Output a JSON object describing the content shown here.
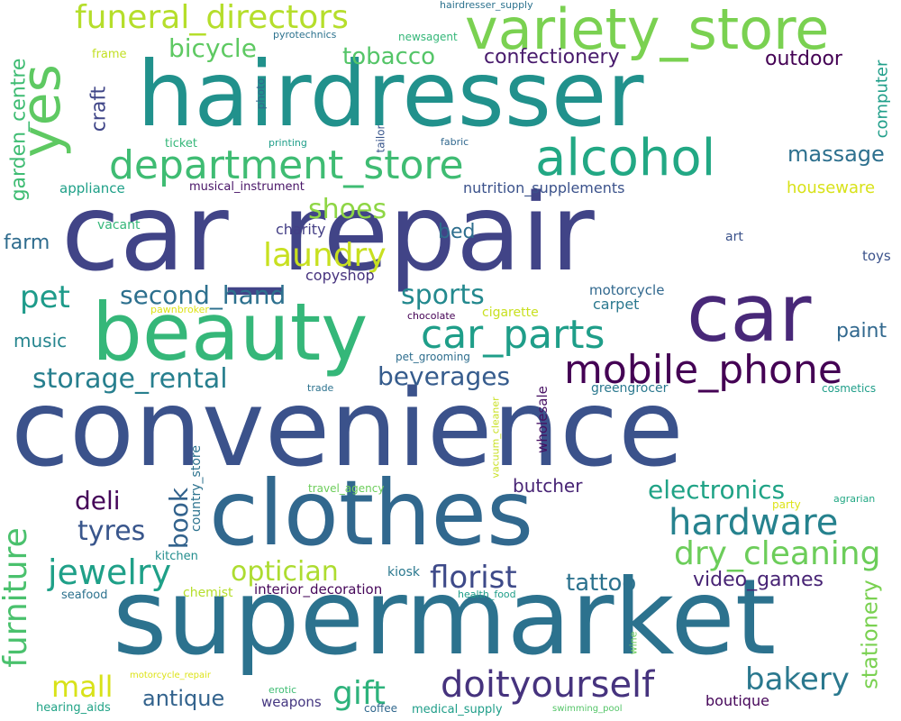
{
  "words": [
    {
      "text": "car_repair",
      "color": "#414487",
      "vertical": false
    },
    {
      "text": "convenience",
      "color": "#3b528b",
      "vertical": false
    },
    {
      "text": "supermarket",
      "color": "#2c728e",
      "vertical": false
    },
    {
      "text": "hairdresser",
      "color": "#21918c",
      "vertical": false
    },
    {
      "text": "clothes",
      "color": "#31688e",
      "vertical": false
    },
    {
      "text": "beauty",
      "color": "#35b779",
      "vertical": false
    },
    {
      "text": "car",
      "color": "#482878",
      "vertical": false
    },
    {
      "text": "yes",
      "color": "#5ec962",
      "vertical": true
    },
    {
      "text": "variety_store",
      "color": "#7ad151",
      "vertical": false
    },
    {
      "text": "alcohol",
      "color": "#22a884",
      "vertical": false
    },
    {
      "text": "department_store",
      "color": "#3fbc73",
      "vertical": false
    },
    {
      "text": "funeral_directors",
      "color": "#b5de2b",
      "vertical": false
    },
    {
      "text": "mobile_phone",
      "color": "#440154",
      "vertical": false
    },
    {
      "text": "car_parts",
      "color": "#1f9e89",
      "vertical": false
    },
    {
      "text": "hardware",
      "color": "#26828e",
      "vertical": false
    },
    {
      "text": "doityourself",
      "color": "#46337e",
      "vertical": false
    },
    {
      "text": "dry_cleaning",
      "color": "#6ccd5a",
      "vertical": false
    },
    {
      "text": "jewelry",
      "color": "#1fa088",
      "vertical": false
    },
    {
      "text": "furniture",
      "color": "#4ac16d",
      "vertical": true
    },
    {
      "text": "florist",
      "color": "#3e4a89",
      "vertical": false
    },
    {
      "text": "bakery",
      "color": "#2a788e",
      "vertical": false
    },
    {
      "text": "storage_rental",
      "color": "#277f8e",
      "vertical": false
    },
    {
      "text": "laundry",
      "color": "#c8e020",
      "vertical": false
    },
    {
      "text": "sports",
      "color": "#23898e",
      "vertical": false
    },
    {
      "text": "optician",
      "color": "#addc30",
      "vertical": false
    },
    {
      "text": "gift",
      "color": "#2eb37c",
      "vertical": false
    },
    {
      "text": "mall",
      "color": "#d8e219",
      "vertical": false
    },
    {
      "text": "second_hand",
      "color": "#2d708e",
      "vertical": false
    },
    {
      "text": "electronics",
      "color": "#20a386",
      "vertical": false
    },
    {
      "text": "beverages",
      "color": "#365c8d",
      "vertical": false
    },
    {
      "text": "shoes",
      "color": "#8ed645",
      "vertical": false
    },
    {
      "text": "pet",
      "color": "#1e9b8a",
      "vertical": false
    },
    {
      "text": "bicycle",
      "color": "#5ec962",
      "vertical": false
    },
    {
      "text": "tobacco",
      "color": "#54c568",
      "vertical": false
    },
    {
      "text": "tyres",
      "color": "#39568c",
      "vertical": false
    },
    {
      "text": "book",
      "color": "#33638d",
      "vertical": true
    },
    {
      "text": "deli",
      "color": "#450559",
      "vertical": false
    },
    {
      "text": "tattoo",
      "color": "#2c728e",
      "vertical": false
    },
    {
      "text": "antique",
      "color": "#33638d",
      "vertical": false
    },
    {
      "text": "stationery",
      "color": "#7ad151",
      "vertical": true
    },
    {
      "text": "massage",
      "color": "#2d708e",
      "vertical": false
    },
    {
      "text": "video_games",
      "color": "#482475",
      "vertical": false
    },
    {
      "text": "confectionery",
      "color": "#481a6c",
      "vertical": false
    },
    {
      "text": "outdoor",
      "color": "#440154",
      "vertical": false
    },
    {
      "text": "craft",
      "color": "#404688",
      "vertical": true
    },
    {
      "text": "garden_centre",
      "color": "#3fbc73",
      "vertical": true
    },
    {
      "text": "butcher",
      "color": "#482475",
      "vertical": false
    },
    {
      "text": "paint",
      "color": "#31688e",
      "vertical": false
    },
    {
      "text": "bed",
      "color": "#2e6e8e",
      "vertical": false
    },
    {
      "text": "music",
      "color": "#25858e",
      "vertical": false
    },
    {
      "text": "farm",
      "color": "#2f6c8e",
      "vertical": false
    },
    {
      "text": "computer",
      "color": "#1f9e89",
      "vertical": true
    },
    {
      "text": "houseware",
      "color": "#d8e219",
      "vertical": false
    },
    {
      "text": "nutrition_supplements",
      "color": "#3b528b",
      "vertical": false
    },
    {
      "text": "boutique",
      "color": "#46075a",
      "vertical": false
    },
    {
      "text": "charity",
      "color": "#433e85",
      "vertical": false
    },
    {
      "text": "copyshop",
      "color": "#46327e",
      "vertical": false
    },
    {
      "text": "motorcycle",
      "color": "#31688e",
      "vertical": false
    },
    {
      "text": "carpet",
      "color": "#2a788e",
      "vertical": false
    },
    {
      "text": "appliance",
      "color": "#1fa088",
      "vertical": false
    },
    {
      "text": "musical_instrument",
      "color": "#481467",
      "vertical": false
    },
    {
      "text": "interior_decoration",
      "color": "#46075a",
      "vertical": false
    },
    {
      "text": "weapons",
      "color": "#453781",
      "vertical": false
    },
    {
      "text": "kiosk",
      "color": "#2a788e",
      "vertical": false
    },
    {
      "text": "toys",
      "color": "#3b528b",
      "vertical": false
    },
    {
      "text": "cigarette",
      "color": "#c8e020",
      "vertical": false
    },
    {
      "text": "greengrocer",
      "color": "#2a788e",
      "vertical": false
    },
    {
      "text": "wholesale",
      "color": "#471063",
      "vertical": true
    },
    {
      "text": "country_store",
      "color": "#2c728e",
      "vertical": true
    },
    {
      "text": "travel_agency",
      "color": "#6ccd5a",
      "vertical": false
    },
    {
      "text": "chemist",
      "color": "#b5de2b",
      "vertical": false
    },
    {
      "text": "kitchen",
      "color": "#228d8d",
      "vertical": false
    },
    {
      "text": "seafood",
      "color": "#2c728e",
      "vertical": false
    },
    {
      "text": "hearing_aids",
      "color": "#20a386",
      "vertical": false
    },
    {
      "text": "coffee",
      "color": "#31688e",
      "vertical": false
    },
    {
      "text": "medical_supply",
      "color": "#1f9e89",
      "vertical": false
    },
    {
      "text": "trade",
      "color": "#2c728e",
      "vertical": false
    },
    {
      "text": "cosmetics",
      "color": "#1f9e89",
      "vertical": false
    },
    {
      "text": "vacuum_cleaner",
      "color": "#c8e020",
      "vertical": true
    },
    {
      "text": "pet_grooming",
      "color": "#2e6e8e",
      "vertical": false
    },
    {
      "text": "chocolate",
      "color": "#440154",
      "vertical": false
    },
    {
      "text": "pawnbroker",
      "color": "#dde318",
      "vertical": false
    },
    {
      "text": "vacant",
      "color": "#35b779",
      "vertical": false
    },
    {
      "text": "art",
      "color": "#3b528b",
      "vertical": false
    },
    {
      "text": "ticket",
      "color": "#35b779",
      "vertical": false
    },
    {
      "text": "printing",
      "color": "#1f9e89",
      "vertical": false
    },
    {
      "text": "fabric",
      "color": "#31688e",
      "vertical": false
    },
    {
      "text": "tailor",
      "color": "#39568c",
      "vertical": true
    },
    {
      "text": "photo",
      "color": "#31688e",
      "vertical": true
    },
    {
      "text": "frame",
      "color": "#c2df23",
      "vertical": false
    },
    {
      "text": "pyrotechnics",
      "color": "#2c728e",
      "vertical": false
    },
    {
      "text": "newsagent",
      "color": "#35b779",
      "vertical": false
    },
    {
      "text": "hairdresser_supply",
      "color": "#2c728e",
      "vertical": false
    },
    {
      "text": "party",
      "color": "#dde318",
      "vertical": false
    },
    {
      "text": "agrarian",
      "color": "#22a884",
      "vertical": false
    },
    {
      "text": "health_food",
      "color": "#1f9e89",
      "vertical": false
    },
    {
      "text": "wine",
      "color": "#6ccd5a",
      "vertical": true
    },
    {
      "text": "motorcycle_repair",
      "color": "#dde318",
      "vertical": false
    },
    {
      "text": "erotic",
      "color": "#3fbc73",
      "vertical": false
    },
    {
      "text": "swimming_pool",
      "color": "#54c568",
      "vertical": false
    }
  ]
}
